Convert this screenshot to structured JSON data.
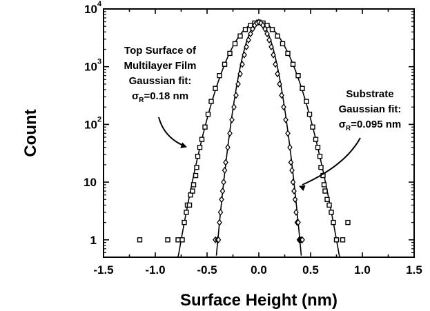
{
  "chart_data": {
    "type": "scatter",
    "title": "",
    "xlabel": "Surface Height (nm)",
    "ylabel": "Count",
    "xlim": [
      -1.5,
      1.5
    ],
    "ylim": [
      0.5,
      10000
    ],
    "yscale": "log",
    "grid": false,
    "legend": "none",
    "x_ticks": [
      -1.5,
      -1.0,
      -0.5,
      0.0,
      0.5,
      1.0,
      1.5
    ],
    "x_tick_labels": [
      "-1.5",
      "-1.0",
      "-0.5",
      "0.0",
      "0.5",
      "1.0",
      "1.5"
    ],
    "y_ticks": [
      1,
      10,
      100,
      1000,
      10000
    ],
    "y_tick_labels": [
      {
        "base": "1",
        "exp": ""
      },
      {
        "base": "10",
        "exp": ""
      },
      {
        "base": "10",
        "exp": "2"
      },
      {
        "base": "10",
        "exp": "3"
      },
      {
        "base": "10",
        "exp": "4"
      }
    ],
    "series": [
      {
        "marker": "square",
        "x": [
          -1.15,
          -0.88,
          -0.78,
          -0.74,
          -0.72,
          -0.7,
          -0.69,
          -0.67,
          -0.66,
          -0.64,
          -0.63,
          -0.61,
          -0.6,
          -0.59,
          -0.57,
          -0.55,
          -0.52,
          -0.49,
          -0.46,
          -0.42,
          -0.38,
          -0.33,
          -0.28,
          -0.23,
          -0.18,
          -0.13,
          -0.08,
          -0.04,
          0.0,
          0.04,
          0.08,
          0.13,
          0.18,
          0.23,
          0.28,
          0.33,
          0.38,
          0.42,
          0.46,
          0.49,
          0.52,
          0.55,
          0.57,
          0.59,
          0.6,
          0.62,
          0.63,
          0.64,
          0.66,
          0.68,
          0.7,
          0.72,
          0.75,
          0.81,
          0.86
        ],
        "y": [
          1,
          1,
          1,
          1,
          2,
          3,
          4,
          4,
          6,
          7,
          9,
          13,
          18,
          28,
          40,
          55,
          90,
          150,
          250,
          420,
          700,
          1100,
          1700,
          2500,
          3400,
          4400,
          5200,
          5700,
          5900,
          5700,
          5200,
          4400,
          3400,
          2500,
          1700,
          1100,
          700,
          420,
          250,
          150,
          90,
          55,
          40,
          28,
          18,
          13,
          9,
          7,
          5,
          4,
          3,
          2,
          1,
          1,
          2
        ]
      },
      {
        "marker": "diamond",
        "x": [
          -0.42,
          -0.4,
          -0.39,
          -0.38,
          -0.37,
          -0.36,
          -0.35,
          -0.34,
          -0.33,
          -0.32,
          -0.3,
          -0.28,
          -0.26,
          -0.24,
          -0.22,
          -0.2,
          -0.18,
          -0.16,
          -0.14,
          -0.12,
          -0.1,
          -0.08,
          -0.06,
          -0.04,
          -0.02,
          0.0,
          0.02,
          0.04,
          0.06,
          0.08,
          0.1,
          0.12,
          0.14,
          0.16,
          0.18,
          0.2,
          0.22,
          0.24,
          0.26,
          0.28,
          0.3,
          0.31,
          0.32,
          0.33,
          0.34,
          0.35,
          0.36,
          0.37,
          0.38,
          0.39,
          0.4,
          0.41,
          0.42
        ],
        "y": [
          1,
          1,
          1,
          2,
          3,
          5,
          7,
          10,
          16,
          22,
          40,
          70,
          120,
          200,
          320,
          500,
          750,
          1100,
          1600,
          2200,
          2900,
          3700,
          4500,
          5200,
          5700,
          5900,
          5700,
          5200,
          4500,
          3700,
          2900,
          2200,
          1600,
          1100,
          750,
          500,
          320,
          200,
          120,
          70,
          40,
          22,
          16,
          10,
          7,
          5,
          3,
          2,
          2,
          1,
          1,
          1,
          1
        ]
      }
    ],
    "fits": [
      {
        "label": "Top Surface of Multilayer Film",
        "sigma": 0.18,
        "amplitude": 5900,
        "x_range": [
          -0.79,
          0.79
        ]
      },
      {
        "label": "Substrate",
        "sigma": 0.095,
        "amplitude": 5900,
        "x_range": [
          -0.41,
          0.41
        ]
      }
    ],
    "annotations": [
      {
        "lines": [
          "Top Surface of",
          "Multilayer Film",
          "Gaussian fit:"
        ],
        "sigma_prefix": "σ",
        "sigma_sub": "R",
        "sigma_value": "=0.18 nm"
      },
      {
        "lines": [
          "Substrate",
          "Gaussian fit:"
        ],
        "sigma_prefix": "σ",
        "sigma_sub": "R",
        "sigma_value": "=0.095 nm"
      }
    ]
  }
}
